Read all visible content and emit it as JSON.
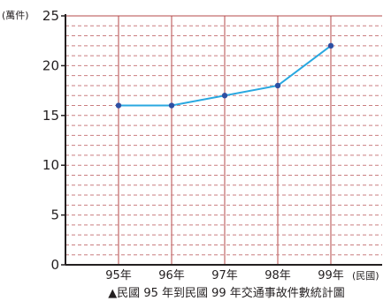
{
  "chart_data": {
    "type": "line",
    "categories": [
      "95年",
      "96年",
      "97年",
      "98年",
      "99年"
    ],
    "series": [
      {
        "values": [
          16,
          16,
          17,
          18,
          22
        ]
      }
    ],
    "ylim": [
      0,
      25
    ],
    "yticks": [
      "0",
      "5",
      "10",
      "15",
      "20",
      "25"
    ],
    "y_unit": "(萬件)",
    "x_unit": "(民國)",
    "caption": "▲民國 95 年到民國 99 年交通事故件數統計圖",
    "grid": true,
    "colors": {
      "line": "#29a8e0",
      "marker": "#2e4fa3",
      "grid_major": "#b5484a",
      "grid_minor": "#c97e80",
      "axis": "#231f20"
    }
  }
}
